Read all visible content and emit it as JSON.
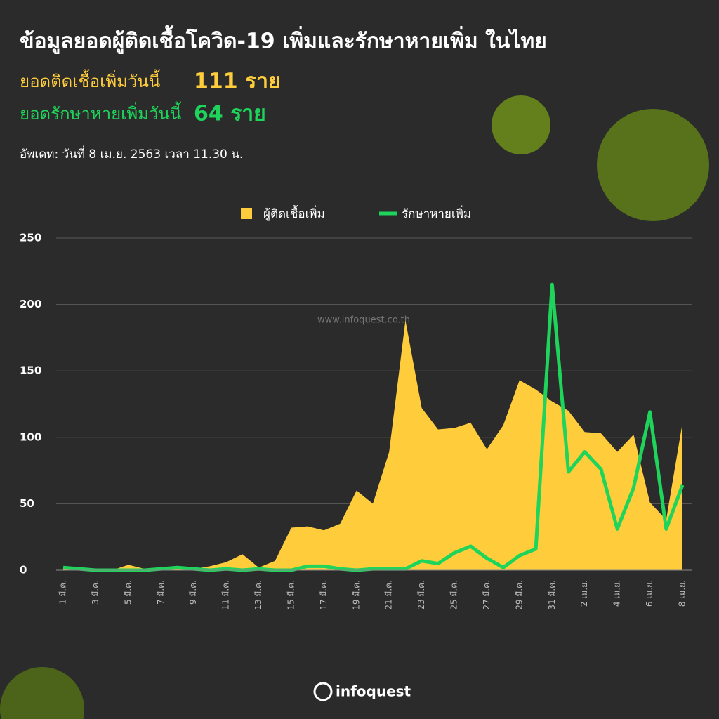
{
  "header": {
    "title": "ข้อมูลยอดผู้ติดเชื้อโควิด-19 เพิ่มและรักษาหายเพิ่ม ในไทย",
    "infected_label": "ยอดติดเชื้อเพิ่มวันนี้",
    "infected_value": "111 ราย",
    "recovered_label": "ยอดรักษาหายเพิ่มวันนี้",
    "recovered_value": "64 ราย",
    "updated": "อัพเดท: วันที่ 8 เม.ย. 2563 เวลา 11.30 น."
  },
  "watermark": "www.infoquest.co.th",
  "logo": "infoquest",
  "chart_data": {
    "type": "area-line",
    "categories": [
      "1 มี.ค.",
      null,
      "3 มี.ค.",
      null,
      "5 มี.ค.",
      null,
      "7 มี.ค.",
      null,
      "9 มี.ค.",
      null,
      "11 มี.ค.",
      null,
      "13 มี.ค.",
      null,
      "15 มี.ค.",
      null,
      "17 มี.ค.",
      null,
      "19 มี.ค.",
      null,
      "21 มี.ค.",
      null,
      "23 มี.ค.",
      null,
      "25 มี.ค.",
      null,
      "27 มี.ค.",
      null,
      "29 มี.ค.",
      null,
      "31 มี.ค.",
      null,
      "2 เม.ย.",
      null,
      "4 เม.ย.",
      null,
      "6 เม.ย.",
      null,
      "8 เม.ย."
    ],
    "series": [
      {
        "name": "ผู้ติดเชื้อเพิ่ม",
        "color": "#ffcd3c",
        "style": "area",
        "values": [
          2,
          1,
          0,
          0,
          4,
          1,
          0,
          1,
          1,
          3,
          6,
          12,
          2,
          7,
          32,
          33,
          30,
          35,
          60,
          50,
          89,
          188,
          122,
          106,
          107,
          111,
          91,
          109,
          143,
          136,
          127,
          120,
          104,
          103,
          89,
          102,
          51,
          38,
          111
        ]
      },
      {
        "name": "รักษาหายเพิ่ม",
        "color": "#1ed45a",
        "style": "line",
        "values": [
          2,
          1,
          0,
          0,
          0,
          0,
          1,
          2,
          1,
          0,
          1,
          0,
          1,
          0,
          0,
          3,
          3,
          1,
          0,
          1,
          1,
          1,
          7,
          5,
          13,
          18,
          9,
          2,
          11,
          16,
          215,
          74,
          89,
          76,
          31,
          62,
          119,
          31,
          64
        ]
      }
    ],
    "ylim": [
      0,
      250
    ],
    "yticks": [
      0,
      50,
      100,
      150,
      200,
      250
    ],
    "grid": true,
    "legend": "top"
  }
}
